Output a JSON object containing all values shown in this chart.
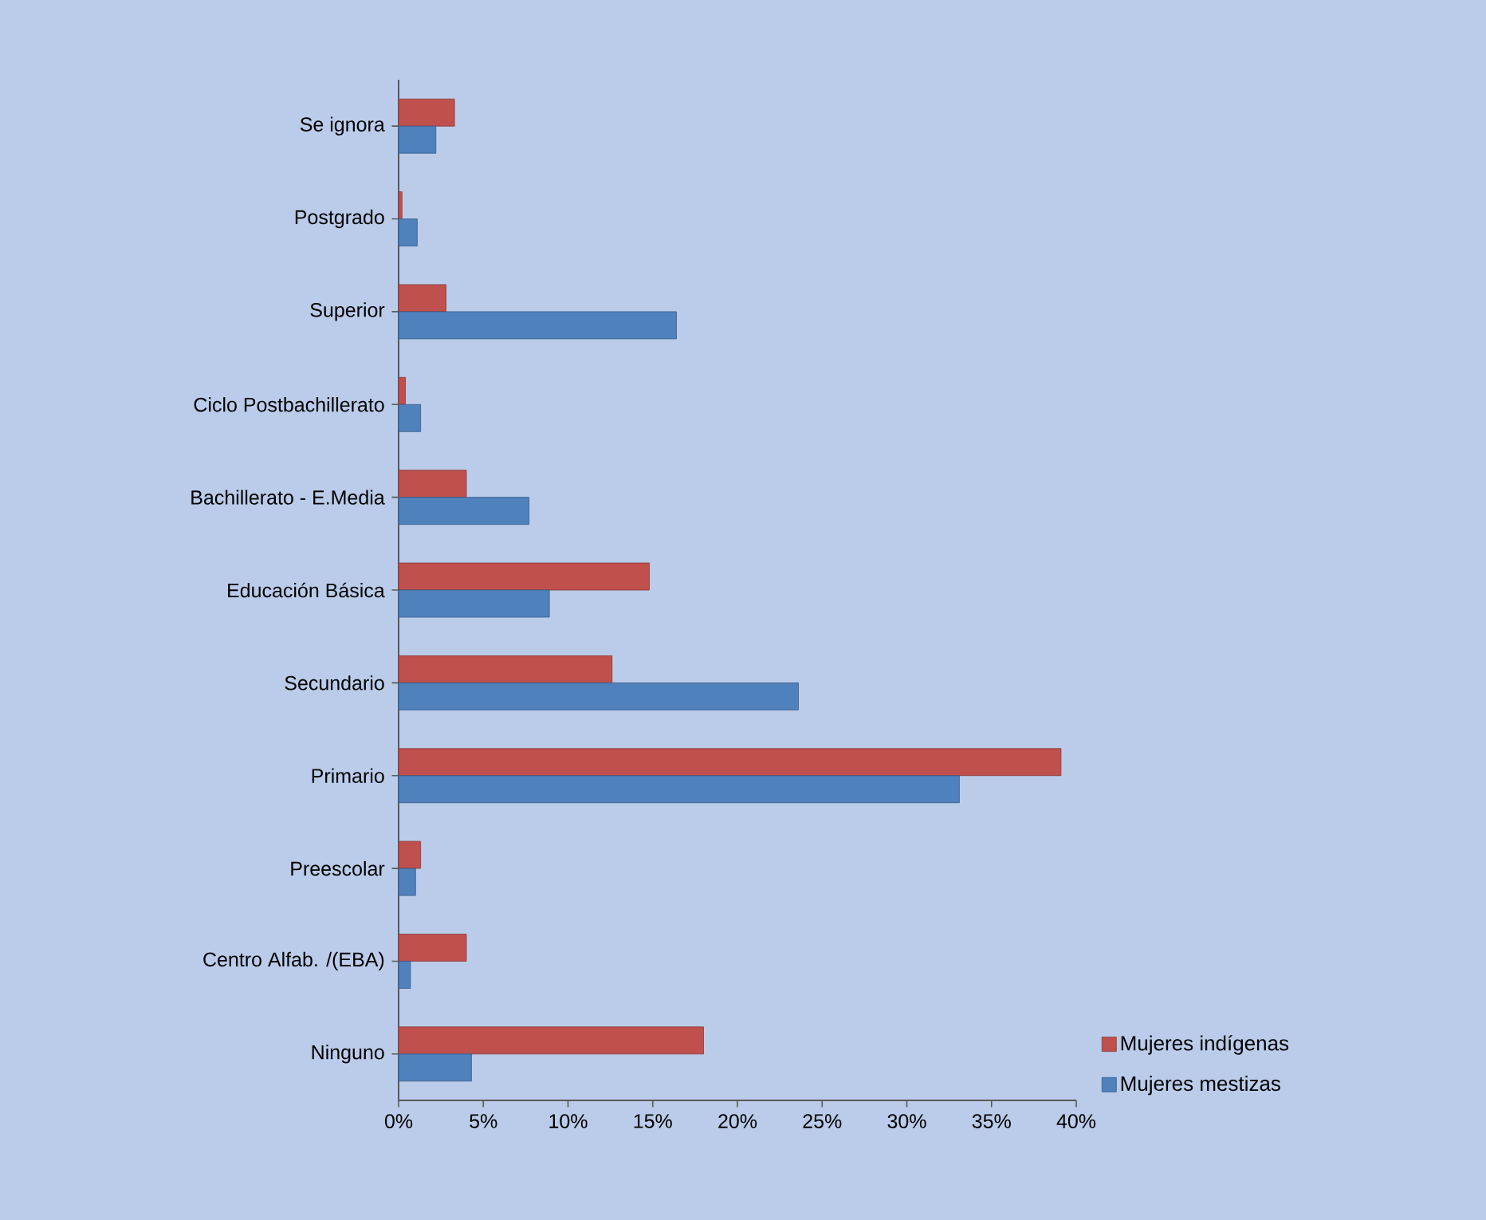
{
  "chart_data": {
    "type": "bar",
    "orientation": "horizontal",
    "categories": [
      "Se ignora",
      "Postgrado",
      "Superior",
      "Ciclo Postbachillerato",
      "Bachillerato - E.Media",
      "Educación Básica",
      "Secundario",
      "Primario",
      "Preescolar",
      "Centro Alfab. /(EBA)",
      "Ninguno"
    ],
    "series": [
      {
        "name": "Mujeres indígenas",
        "color": "#c0504d",
        "values": [
          3.3,
          0.2,
          2.8,
          0.4,
          4.0,
          14.8,
          12.6,
          39.1,
          1.3,
          4.0,
          18.0
        ]
      },
      {
        "name": "Mujeres mestizas",
        "color": "#4f81bd",
        "values": [
          2.2,
          1.1,
          16.4,
          1.3,
          7.7,
          8.9,
          23.6,
          33.1,
          1.0,
          0.7,
          4.3
        ]
      }
    ],
    "xlim": [
      0,
      40
    ],
    "xticks": [
      {
        "value": 0,
        "label": "0%"
      },
      {
        "value": 5,
        "label": "5%"
      },
      {
        "value": 10,
        "label": "10%"
      },
      {
        "value": 15,
        "label": "15%"
      },
      {
        "value": 20,
        "label": "20%"
      },
      {
        "value": 25,
        "label": "25%"
      },
      {
        "value": 30,
        "label": "30%"
      },
      {
        "value": 35,
        "label": "35%"
      },
      {
        "value": 40,
        "label": "40%"
      }
    ],
    "legend": "bottom right"
  }
}
